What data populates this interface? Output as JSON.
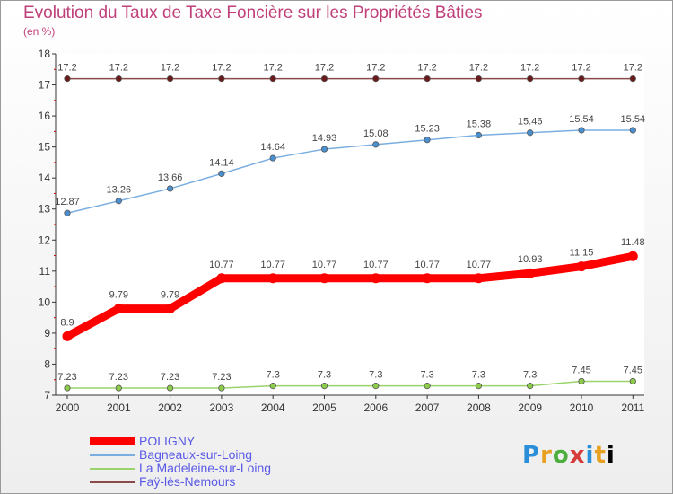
{
  "title": "Evolution du Taux de Taxe Foncière sur les Propriétés Bâties",
  "subtitle": "(en %)",
  "logo": {
    "letters": [
      "P",
      "r",
      "o",
      "x",
      "i",
      "t",
      "i"
    ]
  },
  "chart_data": {
    "type": "line",
    "title": "Evolution du Taux de Taxe Foncière sur les Propriétés Bâties",
    "ylabel": "(en %)",
    "xlabel": "",
    "x": [
      "2000",
      "2001",
      "2002",
      "2003",
      "2004",
      "2005",
      "2006",
      "2007",
      "2008",
      "2009",
      "2010",
      "2011"
    ],
    "ylim": [
      7,
      18
    ],
    "yticks": [
      "7",
      "8",
      "9",
      "10",
      "11",
      "12",
      "13",
      "14",
      "15",
      "16",
      "17",
      "18"
    ],
    "grid": false,
    "legend": "bottom-left",
    "series": [
      {
        "name": "POLIGNY",
        "color": "#ff0000",
        "values": [
          8.9,
          9.79,
          9.79,
          10.77,
          10.77,
          10.77,
          10.77,
          10.77,
          10.77,
          10.93,
          11.15,
          11.48
        ],
        "labels": [
          "8.9",
          "9.79",
          "9.79",
          "10.77",
          "10.77",
          "10.77",
          "10.77",
          "10.77",
          "10.77",
          "10.93",
          "11.15",
          "11.48"
        ]
      },
      {
        "name": "Bagneaux-sur-Loing",
        "color": "#7aaee0",
        "values": [
          12.87,
          13.26,
          13.66,
          14.14,
          14.64,
          14.93,
          15.08,
          15.23,
          15.38,
          15.46,
          15.54,
          15.54
        ],
        "labels": [
          "12.87",
          "13.26",
          "13.66",
          "14.14",
          "14.64",
          "14.93",
          "15.08",
          "15.23",
          "15.38",
          "15.46",
          "15.54",
          "15.54"
        ]
      },
      {
        "name": "La Madeleine-sur-Loing",
        "color": "#9ad36a",
        "values": [
          7.23,
          7.23,
          7.23,
          7.23,
          7.3,
          7.3,
          7.3,
          7.3,
          7.3,
          7.3,
          7.45,
          7.45
        ],
        "labels": [
          "7.23",
          "7.23",
          "7.23",
          "7.23",
          "7.3",
          "7.3",
          "7.3",
          "7.3",
          "7.3",
          "7.3",
          "7.45",
          "7.45"
        ]
      },
      {
        "name": "Faÿ-lès-Nemours",
        "color": "#8b4a4a",
        "values": [
          17.2,
          17.2,
          17.2,
          17.2,
          17.2,
          17.2,
          17.2,
          17.2,
          17.2,
          17.2,
          17.2,
          17.2
        ],
        "labels": [
          "17.2",
          "17.2",
          "17.2",
          "17.2",
          "17.2",
          "17.2",
          "17.2",
          "17.2",
          "17.2",
          "17.2",
          "17.2",
          "17.2"
        ]
      }
    ]
  }
}
